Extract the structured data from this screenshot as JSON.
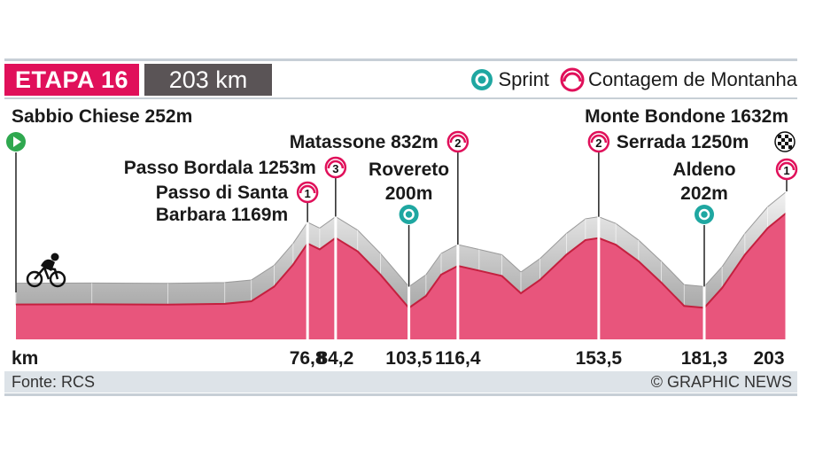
{
  "header": {
    "stage": "ETAPA 16",
    "distance": "203 km"
  },
  "legend": {
    "sprint": "Sprint",
    "climb": "Contagem de Montanha"
  },
  "colors": {
    "profile_fill": "#e8557c",
    "profile_edge": "#c4203f",
    "wall_light": "#f2f2f2",
    "wall_dark": "#a9a9a9",
    "sprint": "#1fa7a1",
    "climb": "#e0105a",
    "start": "#2fa84f"
  },
  "footer": {
    "source": "Fonte: RCS",
    "credit": "© GRAPHIC NEWS"
  },
  "chart_data": {
    "type": "area",
    "xlabel": "km",
    "x_ticks": [
      "76,8",
      "84,2",
      "103,5",
      "116,4",
      "153,5",
      "181,3",
      "203"
    ],
    "xlim": [
      0,
      203
    ],
    "ylim": [
      100,
      1700
    ],
    "points": [
      {
        "km": 0,
        "alt": 252
      },
      {
        "km": 20,
        "alt": 255
      },
      {
        "km": 40,
        "alt": 250
      },
      {
        "km": 55,
        "alt": 262
      },
      {
        "km": 62,
        "alt": 300
      },
      {
        "km": 68,
        "alt": 520
      },
      {
        "km": 73,
        "alt": 850
      },
      {
        "km": 76.8,
        "alt": 1169
      },
      {
        "km": 80,
        "alt": 1080
      },
      {
        "km": 84.2,
        "alt": 1253
      },
      {
        "km": 90,
        "alt": 1050
      },
      {
        "km": 96,
        "alt": 700
      },
      {
        "km": 103.5,
        "alt": 200
      },
      {
        "km": 108,
        "alt": 380
      },
      {
        "km": 112,
        "alt": 700
      },
      {
        "km": 116.4,
        "alt": 832
      },
      {
        "km": 122,
        "alt": 760
      },
      {
        "km": 128,
        "alt": 680
      },
      {
        "km": 133,
        "alt": 420
      },
      {
        "km": 138,
        "alt": 620
      },
      {
        "km": 145,
        "alt": 1000
      },
      {
        "km": 150,
        "alt": 1220
      },
      {
        "km": 153.5,
        "alt": 1250
      },
      {
        "km": 158,
        "alt": 1150
      },
      {
        "km": 164,
        "alt": 900
      },
      {
        "km": 170,
        "alt": 580
      },
      {
        "km": 176,
        "alt": 230
      },
      {
        "km": 181.3,
        "alt": 202
      },
      {
        "km": 186,
        "alt": 500
      },
      {
        "km": 192,
        "alt": 1000
      },
      {
        "km": 198,
        "alt": 1400
      },
      {
        "km": 203,
        "alt": 1632
      }
    ],
    "markers": [
      {
        "km": 0,
        "kind": "start",
        "label": "Sabbio Chiese 252m",
        "lines": [
          "Sabbio Chiese 252m"
        ]
      },
      {
        "km": 76.8,
        "kind": "climb",
        "cat": "1",
        "lines": [
          "Passo di Santa",
          "Barbara 1169m"
        ]
      },
      {
        "km": 84.2,
        "kind": "climb",
        "cat": "3",
        "lines": [
          "Passo Bordala 1253m"
        ]
      },
      {
        "km": 103.5,
        "kind": "sprint",
        "lines": [
          "Rovereto",
          "200m"
        ]
      },
      {
        "km": 116.4,
        "kind": "climb",
        "cat": "2",
        "lines": [
          "Matassone 832m"
        ]
      },
      {
        "km": 153.5,
        "kind": "climb",
        "cat": "2",
        "lines": [
          "Serrada 1250m"
        ]
      },
      {
        "km": 181.3,
        "kind": "sprint",
        "lines": [
          "Aldeno",
          "202m"
        ]
      },
      {
        "km": 203,
        "kind": "climb",
        "cat": "1",
        "finish": true,
        "lines": [
          "Monte Bondone 1632m"
        ]
      }
    ]
  }
}
